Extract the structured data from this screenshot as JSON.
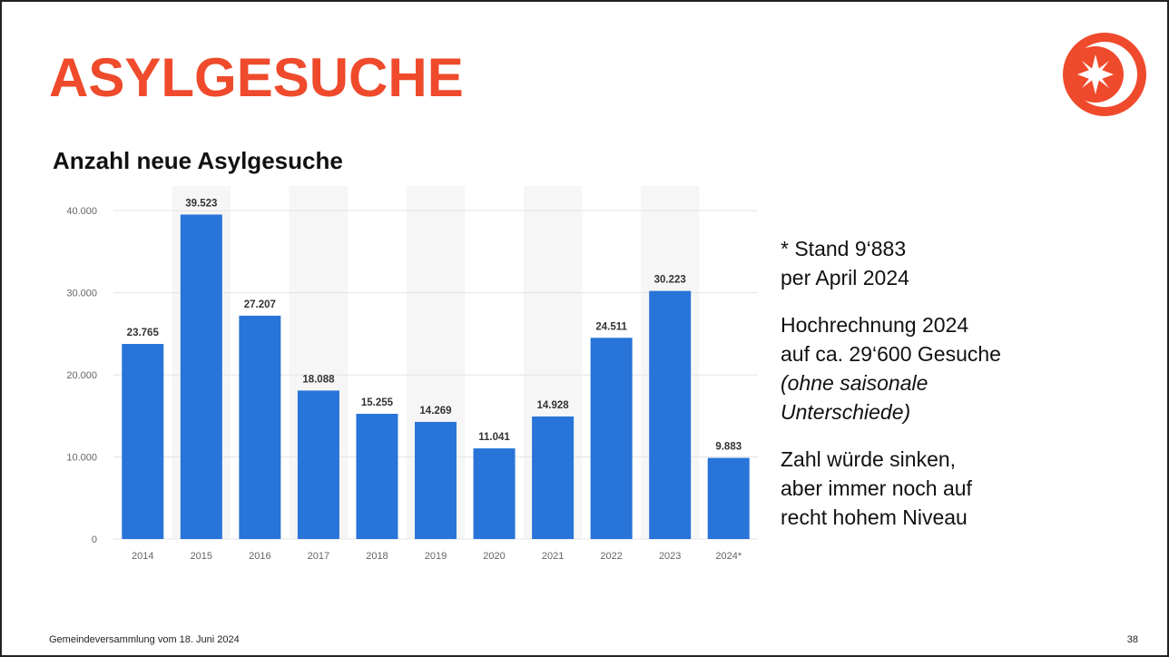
{
  "slide": {
    "title": "ASYLGESUCHE",
    "footer": "Gemeindeversammlung  vom 18. Juni 2024",
    "page_number": "38"
  },
  "chart_data": {
    "type": "bar",
    "title": "Anzahl neue Asylgesuche",
    "categories": [
      "2014",
      "2015",
      "2016",
      "2017",
      "2018",
      "2019",
      "2020",
      "2021",
      "2022",
      "2023",
      "2024*"
    ],
    "values": [
      23765,
      39523,
      27207,
      18088,
      15255,
      14269,
      11041,
      14928,
      24511,
      30223,
      9883
    ],
    "value_labels": [
      "23.765",
      "39.523",
      "27.207",
      "18.088",
      "15.255",
      "14.269",
      "11.041",
      "14.928",
      "24.511",
      "30.223",
      "9.883"
    ],
    "color": "#2874d8",
    "ylim": [
      0,
      43000
    ],
    "yticks": [
      0,
      {
        "value": 10000,
        "label": "10.000"
      },
      {
        "value": 20000,
        "label": "20.000"
      },
      {
        "value": 30000,
        "label": "30.000"
      },
      {
        "value": 40000,
        "label": "40.000"
      }
    ],
    "grid": true
  },
  "notes": [
    [
      "* Stand 9‘883",
      "per April 2024"
    ],
    [
      "Hochrechnung 2024",
      "auf ca. 29‘600 Gesuche",
      "(ohne saisonale",
      "Unterschiede)"
    ],
    [
      "Zahl würde sinken,",
      "aber immer noch auf",
      "recht hohem Niveau"
    ]
  ]
}
